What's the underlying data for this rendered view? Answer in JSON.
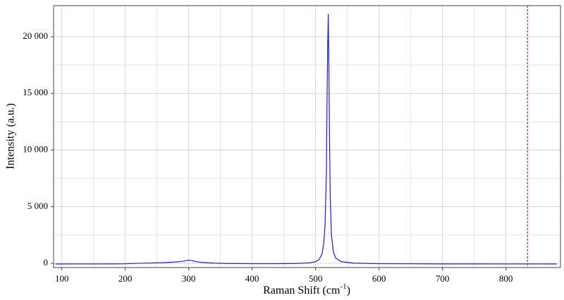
{
  "chart_data": {
    "type": "line",
    "x_label": {
      "text": "Raman Shift (cm",
      "superscript": "-1",
      "suffix": ")"
    },
    "y_label": "Intensity (a.u.)",
    "x": [
      90,
      120,
      150,
      180,
      200,
      220,
      240,
      260,
      280,
      290,
      300,
      305,
      310,
      320,
      340,
      360,
      400,
      440,
      470,
      490,
      500,
      505,
      510,
      513,
      515,
      517,
      518,
      519,
      520,
      521,
      522,
      523,
      525,
      528,
      532,
      540,
      560,
      600,
      650,
      700,
      750,
      800,
      850,
      880
    ],
    "series": [
      {
        "color": "#1a1ae6",
        "values": [
          -60,
          -55,
          -55,
          -50,
          -40,
          0,
          30,
          60,
          120,
          180,
          280,
          250,
          170,
          80,
          20,
          -10,
          -30,
          -30,
          -10,
          40,
          150,
          300,
          800,
          1800,
          3500,
          8000,
          14000,
          19000,
          22000,
          17000,
          11000,
          6000,
          2500,
          1000,
          450,
          150,
          20,
          -30,
          -40,
          -50,
          -50,
          -55,
          -55,
          -60
        ]
      }
    ],
    "xlim": [
      87,
      886
    ],
    "ylim": [
      -370,
      22740
    ],
    "xticks": [
      100,
      200,
      300,
      400,
      500,
      600,
      700,
      800
    ],
    "yticks": [
      0,
      {
        "value": 5000,
        "label": "5 000"
      },
      {
        "value": 10000,
        "label": "10 000"
      },
      {
        "value": 15000,
        "label": "15 000"
      },
      {
        "value": 20000,
        "label": "20 000"
      }
    ],
    "grid": true,
    "minor_grid": true,
    "reference_line": {
      "x": 834,
      "color": "#c00000",
      "style": "dashed"
    }
  }
}
